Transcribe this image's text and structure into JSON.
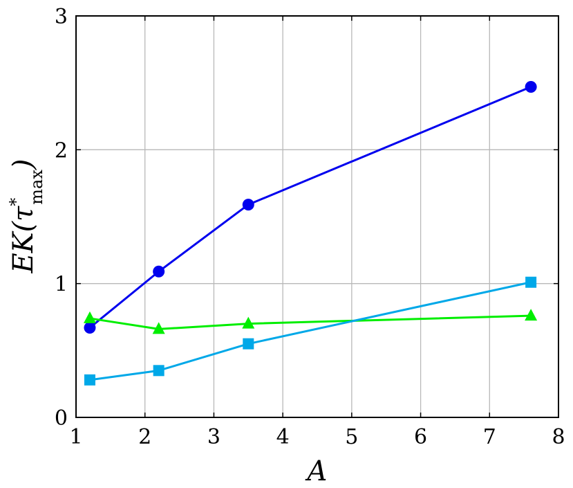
{
  "chart_data": {
    "type": "line",
    "title": "",
    "xlabel": "A",
    "ylabel": {
      "base": "EK(τ",
      "sup": "*",
      "sub": "max",
      "close": ")"
    },
    "xlim": [
      1,
      8
    ],
    "ylim": [
      0,
      3
    ],
    "xticks": [
      "1",
      "2",
      "3",
      "4",
      "5",
      "6",
      "7",
      "8"
    ],
    "yticks": [
      "0",
      "1",
      "2",
      "3"
    ],
    "grid": true,
    "legend": "none",
    "series": [
      {
        "color": "#0000ee",
        "marker": "circle",
        "points": [
          {
            "x": 1.2,
            "y": 0.67
          },
          {
            "x": 2.2,
            "y": 1.09
          },
          {
            "x": 3.5,
            "y": 1.59
          },
          {
            "x": 7.6,
            "y": 2.47
          }
        ]
      },
      {
        "color": "#00ee00",
        "marker": "triangle",
        "points": [
          {
            "x": 1.2,
            "y": 0.74
          },
          {
            "x": 2.2,
            "y": 0.66
          },
          {
            "x": 3.5,
            "y": 0.7
          },
          {
            "x": 7.6,
            "y": 0.76
          }
        ]
      },
      {
        "color": "#00a8e8",
        "marker": "square",
        "points": [
          {
            "x": 1.2,
            "y": 0.28
          },
          {
            "x": 2.2,
            "y": 0.35
          },
          {
            "x": 3.5,
            "y": 0.55
          },
          {
            "x": 7.6,
            "y": 1.01
          }
        ]
      }
    ]
  }
}
